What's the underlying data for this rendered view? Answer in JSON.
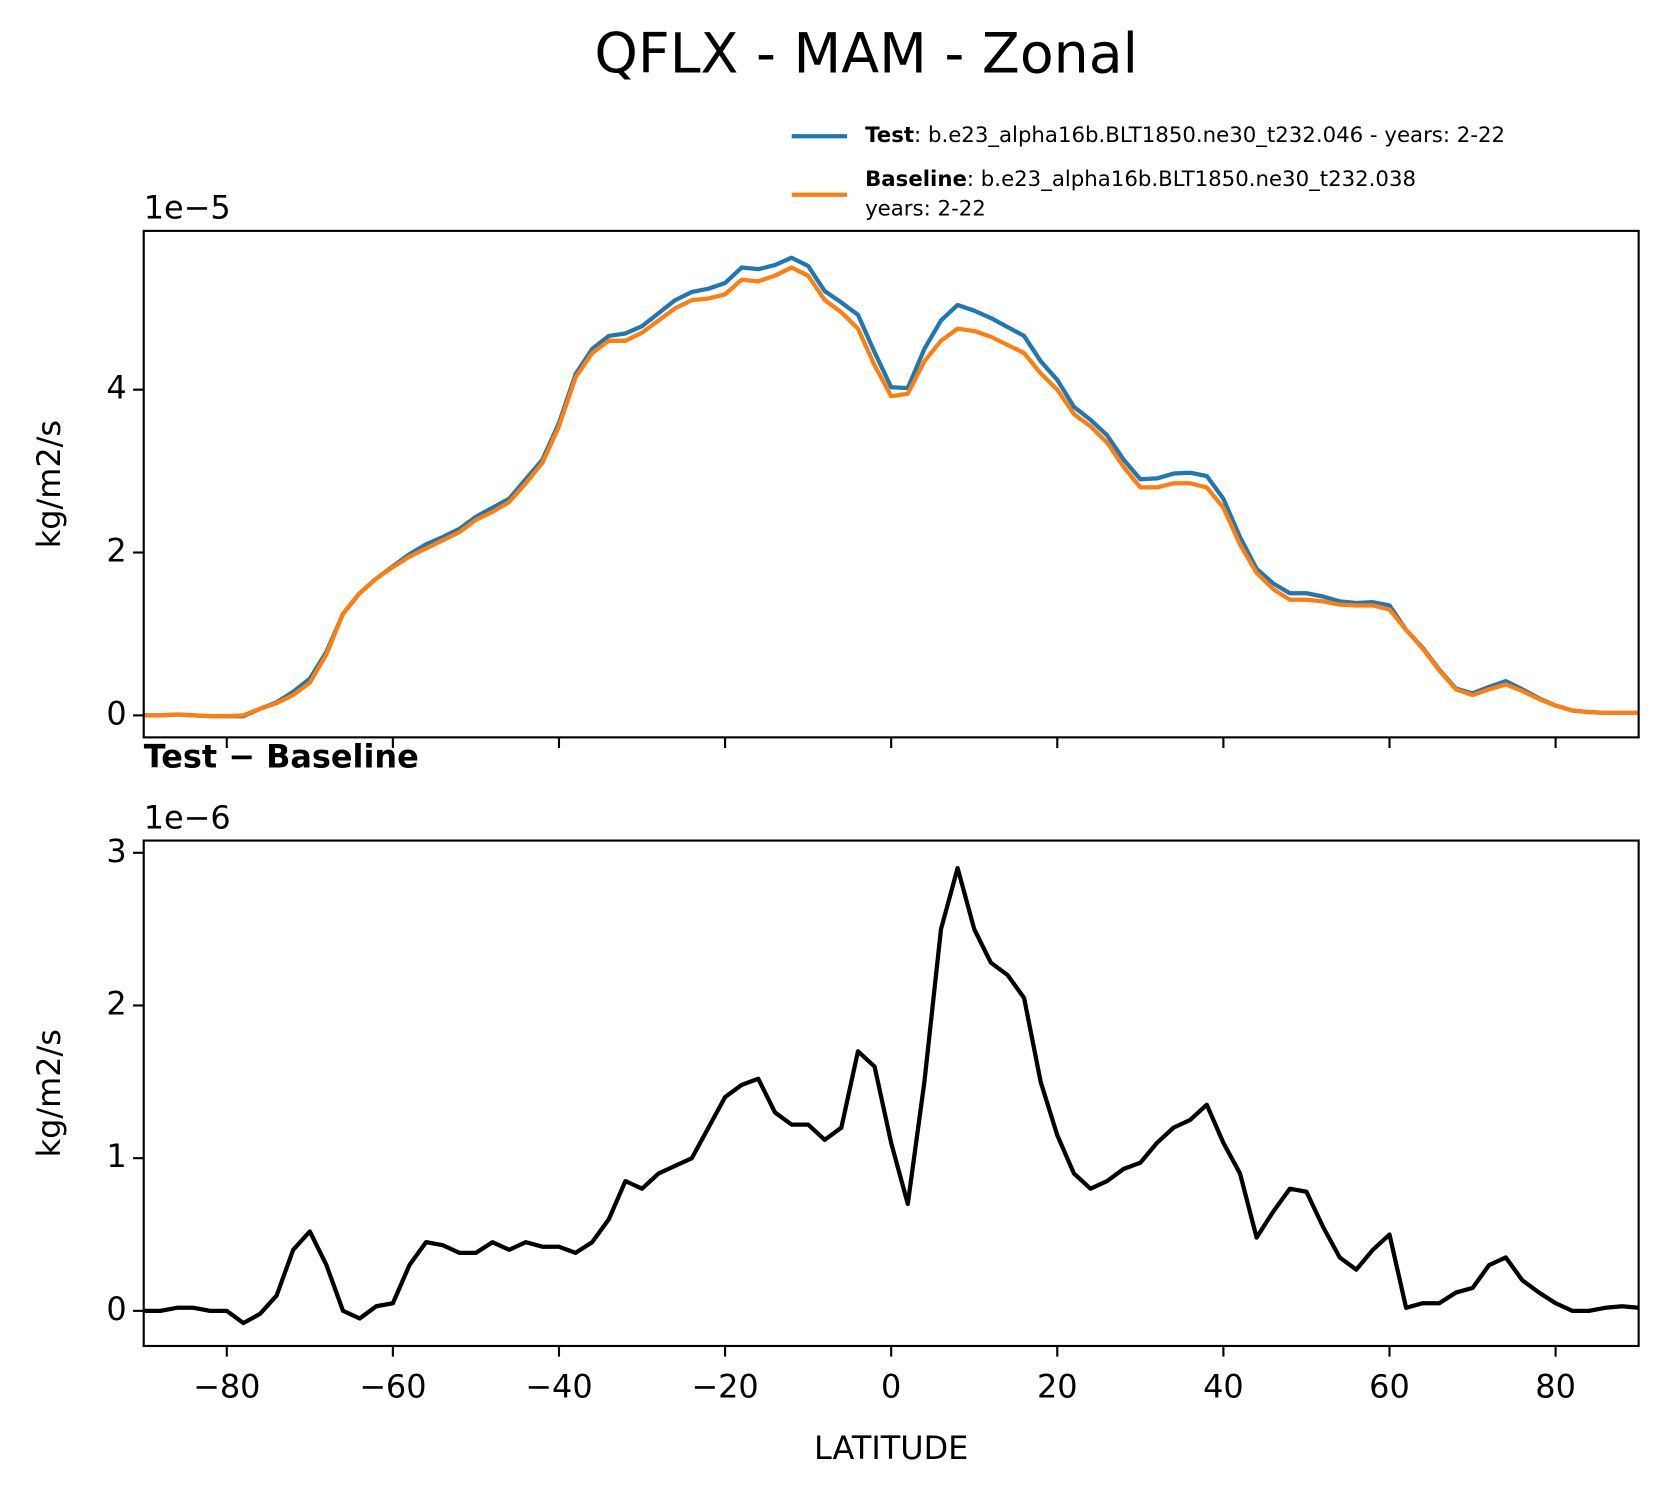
{
  "title": "QFLX - MAM - Zonal",
  "chart_data": [
    {
      "type": "line",
      "offset_text": "1e−5",
      "ylabel": "kg/m2/s",
      "x": [
        -90,
        -88,
        -86,
        -84,
        -82,
        -80,
        -78,
        -76,
        -74,
        -72,
        -70,
        -68,
        -66,
        -64,
        -62,
        -60,
        -58,
        -56,
        -54,
        -52,
        -50,
        -48,
        -46,
        -44,
        -42,
        -40,
        -38,
        -36,
        -34,
        -32,
        -30,
        -28,
        -26,
        -24,
        -22,
        -20,
        -18,
        -16,
        -14,
        -12,
        -10,
        -8,
        -6,
        -4,
        -2,
        0,
        2,
        4,
        6,
        8,
        10,
        12,
        14,
        16,
        18,
        20,
        22,
        24,
        26,
        28,
        30,
        32,
        34,
        36,
        38,
        40,
        42,
        44,
        46,
        48,
        50,
        52,
        54,
        56,
        58,
        60,
        62,
        64,
        66,
        68,
        70,
        72,
        74,
        76,
        78,
        80,
        82,
        84,
        86,
        88,
        90
      ],
      "series": [
        {
          "name": "Test",
          "label": ": b.e23_alpha16b.BLT1850.ne30_t232.046 - years: 2-22",
          "color": "#1f77b4",
          "values": [
            0.0,
            0.0,
            0.01,
            0.0,
            -0.01,
            -0.01,
            -0.01,
            0.08,
            0.16,
            0.29,
            0.45,
            0.78,
            1.25,
            1.5,
            1.68,
            1.83,
            1.98,
            2.1,
            2.19,
            2.29,
            2.44,
            2.55,
            2.66,
            2.9,
            3.14,
            3.59,
            4.19,
            4.5,
            4.66,
            4.69,
            4.78,
            4.94,
            5.1,
            5.2,
            5.24,
            5.31,
            5.5,
            5.48,
            5.53,
            5.62,
            5.52,
            5.21,
            5.07,
            4.92,
            4.46,
            4.03,
            4.02,
            4.5,
            4.85,
            5.04,
            4.97,
            4.88,
            4.77,
            4.66,
            4.35,
            4.12,
            3.79,
            3.63,
            3.44,
            3.14,
            2.9,
            2.91,
            2.97,
            2.98,
            2.94,
            2.66,
            2.19,
            1.8,
            1.62,
            1.5,
            1.5,
            1.46,
            1.4,
            1.38,
            1.39,
            1.35,
            1.05,
            0.83,
            0.56,
            0.33,
            0.27,
            0.35,
            0.42,
            0.32,
            0.21,
            0.12,
            0.06,
            0.04,
            0.03,
            0.03,
            0.03
          ]
        },
        {
          "name": "Baseline",
          "label": [
            ": b.e23_alpha16b.BLT1850.ne30_t232.038",
            "years: 2-22"
          ],
          "color": "#ff7f0e",
          "values": [
            0.0,
            0.0,
            0.01,
            0.0,
            -0.01,
            -0.01,
            0.0,
            0.08,
            0.15,
            0.25,
            0.4,
            0.75,
            1.25,
            1.5,
            1.68,
            1.82,
            1.95,
            2.05,
            2.15,
            2.25,
            2.4,
            2.5,
            2.62,
            2.85,
            3.1,
            3.55,
            4.15,
            4.45,
            4.6,
            4.6,
            4.7,
            4.85,
            5.0,
            5.1,
            5.12,
            5.17,
            5.35,
            5.33,
            5.4,
            5.5,
            5.4,
            5.1,
            4.95,
            4.75,
            4.3,
            3.92,
            3.95,
            4.35,
            4.6,
            4.75,
            4.72,
            4.65,
            4.55,
            4.45,
            4.2,
            4.0,
            3.7,
            3.55,
            3.35,
            3.05,
            2.8,
            2.8,
            2.85,
            2.85,
            2.8,
            2.55,
            2.1,
            1.75,
            1.55,
            1.42,
            1.42,
            1.4,
            1.36,
            1.35,
            1.35,
            1.3,
            1.05,
            0.82,
            0.55,
            0.32,
            0.25,
            0.32,
            0.38,
            0.3,
            0.2,
            0.12,
            0.06,
            0.04,
            0.03,
            0.03,
            0.03
          ]
        }
      ],
      "xlim": [
        -90,
        90
      ],
      "xticks": [
        -80,
        -60,
        -40,
        -20,
        0,
        20,
        40,
        60,
        80
      ],
      "ylim": [
        -0.27,
        5.95
      ],
      "yticks": [
        0,
        2,
        4
      ],
      "grid": false,
      "legend": "upper right"
    },
    {
      "type": "line",
      "title": "Test − Baseline",
      "offset_text": "1e−6",
      "ylabel": "kg/m2/s",
      "xlabel": "LATITUDE",
      "x": [
        -90,
        -88,
        -86,
        -84,
        -82,
        -80,
        -78,
        -76,
        -74,
        -72,
        -70,
        -68,
        -66,
        -64,
        -62,
        -60,
        -58,
        -56,
        -54,
        -52,
        -50,
        -48,
        -46,
        -44,
        -42,
        -40,
        -38,
        -36,
        -34,
        -32,
        -30,
        -28,
        -26,
        -24,
        -22,
        -20,
        -18,
        -16,
        -14,
        -12,
        -10,
        -8,
        -6,
        -4,
        -2,
        0,
        2,
        4,
        6,
        8,
        10,
        12,
        14,
        16,
        18,
        20,
        22,
        24,
        26,
        28,
        30,
        32,
        34,
        36,
        38,
        40,
        42,
        44,
        46,
        48,
        50,
        52,
        54,
        56,
        58,
        60,
        62,
        64,
        66,
        68,
        70,
        72,
        74,
        76,
        78,
        80,
        82,
        84,
        86,
        88,
        90
      ],
      "color": "#000000",
      "values": [
        0,
        0,
        0.02,
        0.02,
        0,
        0,
        -0.08,
        -0.02,
        0.1,
        0.4,
        0.52,
        0.3,
        0.0,
        -0.05,
        0.03,
        0.05,
        0.3,
        0.45,
        0.43,
        0.38,
        0.38,
        0.45,
        0.4,
        0.45,
        0.42,
        0.42,
        0.38,
        0.45,
        0.6,
        0.85,
        0.8,
        0.9,
        0.95,
        1.0,
        1.2,
        1.4,
        1.48,
        1.52,
        1.3,
        1.22,
        1.22,
        1.12,
        1.2,
        1.7,
        1.6,
        1.1,
        0.7,
        1.5,
        2.5,
        2.9,
        2.5,
        2.28,
        2.2,
        2.05,
        1.5,
        1.15,
        0.9,
        0.8,
        0.85,
        0.93,
        0.97,
        1.1,
        1.2,
        1.25,
        1.35,
        1.1,
        0.9,
        0.48,
        0.65,
        0.8,
        0.78,
        0.55,
        0.35,
        0.27,
        0.4,
        0.5,
        0.02,
        0.05,
        0.05,
        0.12,
        0.15,
        0.3,
        0.35,
        0.2,
        0.12,
        0.05,
        0.0,
        0.0,
        0.02,
        0.03,
        0.02
      ],
      "xlim": [
        -90,
        90
      ],
      "xticks": [
        -80,
        -60,
        -40,
        -20,
        0,
        20,
        40,
        60,
        80
      ],
      "ylim": [
        -0.23,
        3.08
      ],
      "yticks": [
        0,
        1,
        2,
        3
      ],
      "grid": false
    }
  ]
}
